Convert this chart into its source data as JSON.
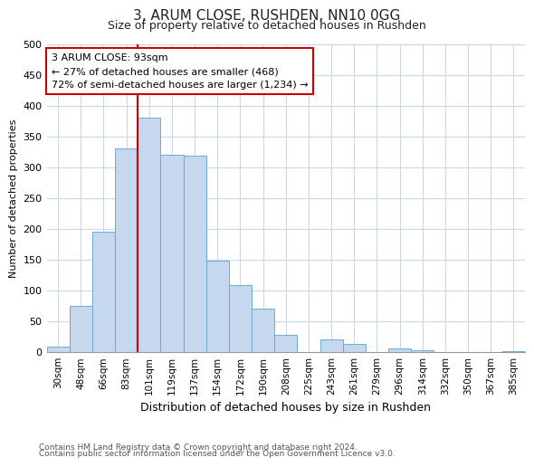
{
  "title": "3, ARUM CLOSE, RUSHDEN, NN10 0GG",
  "subtitle": "Size of property relative to detached houses in Rushden",
  "xlabel": "Distribution of detached houses by size in Rushden",
  "ylabel": "Number of detached properties",
  "bar_labels": [
    "30sqm",
    "48sqm",
    "66sqm",
    "83sqm",
    "101sqm",
    "119sqm",
    "137sqm",
    "154sqm",
    "172sqm",
    "190sqm",
    "208sqm",
    "225sqm",
    "243sqm",
    "261sqm",
    "279sqm",
    "296sqm",
    "314sqm",
    "332sqm",
    "350sqm",
    "367sqm",
    "385sqm"
  ],
  "bar_values": [
    8,
    75,
    195,
    330,
    380,
    320,
    318,
    148,
    108,
    70,
    28,
    0,
    20,
    13,
    0,
    5,
    3,
    0,
    0,
    0,
    1
  ],
  "bar_color": "#c5d8ee",
  "bar_edgecolor": "#6aaad4",
  "vline_color": "#cc0000",
  "annotation_line1": "3 ARUM CLOSE: 93sqm",
  "annotation_line2": "← 27% of detached houses are smaller (468)",
  "annotation_line3": "72% of semi-detached houses are larger (1,234) →",
  "annotation_box_color": "#ffffff",
  "annotation_box_edgecolor": "#cc0000",
  "ylim": [
    0,
    500
  ],
  "yticks": [
    0,
    50,
    100,
    150,
    200,
    250,
    300,
    350,
    400,
    450,
    500
  ],
  "footnote1": "Contains HM Land Registry data © Crown copyright and database right 2024.",
  "footnote2": "Contains public sector information licensed under the Open Government Licence v3.0.",
  "bg_color": "#ffffff",
  "grid_color": "#c8d8e8",
  "bar_width": 1.0
}
